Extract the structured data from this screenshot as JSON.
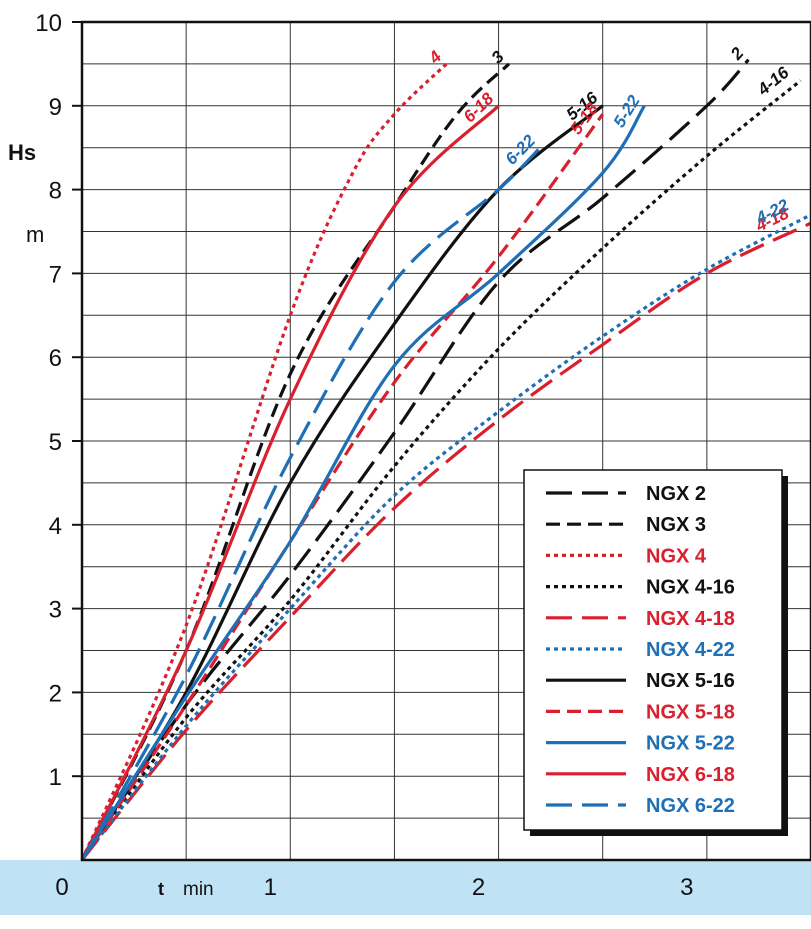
{
  "chart_data": {
    "type": "line",
    "x_axis": {
      "ticks": [
        "0",
        "1",
        "2",
        "3"
      ],
      "label_bold": "t",
      "label_unit": "min",
      "range": [
        0,
        3.5
      ]
    },
    "y_axis": {
      "ticks": [
        "1",
        "2",
        "3",
        "4",
        "5",
        "6",
        "7",
        "8",
        "9",
        "10"
      ],
      "label_bold": "Hs",
      "label_unit": "m",
      "range": [
        0,
        10
      ]
    },
    "grid": true,
    "legend_position": "bottom-right",
    "series": [
      {
        "name": "NGX 2",
        "end_label": "2",
        "color": "#111111",
        "dash": "long-dash",
        "points": [
          [
            0,
            0
          ],
          [
            0.5,
            1.85
          ],
          [
            1,
            3.4
          ],
          [
            1.5,
            5.1
          ],
          [
            2,
            6.9
          ],
          [
            2.5,
            7.9
          ],
          [
            3,
            9.0
          ],
          [
            3.2,
            9.55
          ]
        ]
      },
      {
        "name": "NGX 3",
        "end_label": "3",
        "color": "#111111",
        "dash": "dash",
        "points": [
          [
            0,
            0
          ],
          [
            0.5,
            2.5
          ],
          [
            1,
            5.8
          ],
          [
            1.5,
            7.8
          ],
          [
            1.8,
            8.9
          ],
          [
            2.05,
            9.5
          ]
        ]
      },
      {
        "name": "NGX 4",
        "end_label": "4",
        "color": "#d8202f",
        "dash": "dot",
        "points": [
          [
            0,
            0
          ],
          [
            0.5,
            2.8
          ],
          [
            1,
            6.5
          ],
          [
            1.3,
            8.2
          ],
          [
            1.5,
            8.9
          ],
          [
            1.75,
            9.5
          ]
        ]
      },
      {
        "name": "NGX 4-16",
        "end_label": "4-16",
        "color": "#111111",
        "dash": "dot",
        "points": [
          [
            0,
            0
          ],
          [
            0.5,
            1.7
          ],
          [
            1,
            3.1
          ],
          [
            1.5,
            4.7
          ],
          [
            2,
            6.1
          ],
          [
            2.5,
            7.3
          ],
          [
            3,
            8.4
          ],
          [
            3.45,
            9.3
          ]
        ]
      },
      {
        "name": "NGX 4-18",
        "end_label": "4-18",
        "color": "#d8202f",
        "dash": "long-dash",
        "points": [
          [
            0,
            0
          ],
          [
            0.5,
            1.55
          ],
          [
            1,
            2.9
          ],
          [
            1.5,
            4.2
          ],
          [
            2,
            5.25
          ],
          [
            2.5,
            6.15
          ],
          [
            3,
            7.0
          ],
          [
            3.5,
            7.6
          ]
        ]
      },
      {
        "name": "NGX 4-22",
        "end_label": "4-22",
        "color": "#1e6fb5",
        "dash": "dot",
        "points": [
          [
            0,
            0
          ],
          [
            0.5,
            1.6
          ],
          [
            1,
            3.0
          ],
          [
            1.5,
            4.35
          ],
          [
            2,
            5.35
          ],
          [
            2.5,
            6.25
          ],
          [
            3,
            7.05
          ],
          [
            3.5,
            7.7
          ]
        ]
      },
      {
        "name": "NGX 5-16",
        "end_label": "5-16",
        "color": "#111111",
        "dash": "solid",
        "points": [
          [
            0,
            0
          ],
          [
            0.5,
            2.0
          ],
          [
            1,
            4.5
          ],
          [
            1.5,
            6.4
          ],
          [
            2,
            8.0
          ],
          [
            2.5,
            9.0
          ]
        ]
      },
      {
        "name": "NGX 5-18",
        "end_label": "5-18",
        "color": "#d8202f",
        "dash": "dash",
        "points": [
          [
            0,
            0
          ],
          [
            0.5,
            1.85
          ],
          [
            1,
            3.8
          ],
          [
            1.5,
            5.7
          ],
          [
            2,
            7.2
          ],
          [
            2.5,
            8.9
          ]
        ]
      },
      {
        "name": "NGX 5-22",
        "end_label": "5-22",
        "color": "#1e6fb5",
        "dash": "solid",
        "points": [
          [
            0,
            0
          ],
          [
            0.5,
            1.95
          ],
          [
            1,
            3.8
          ],
          [
            1.5,
            5.9
          ],
          [
            2,
            7.0
          ],
          [
            2.5,
            8.2
          ],
          [
            2.7,
            9.0
          ]
        ]
      },
      {
        "name": "NGX 6-18",
        "end_label": "6-18",
        "color": "#d8202f",
        "dash": "solid",
        "points": [
          [
            0,
            0
          ],
          [
            0.5,
            2.5
          ],
          [
            1,
            5.5
          ],
          [
            1.5,
            7.8
          ],
          [
            2,
            9.0
          ]
        ]
      },
      {
        "name": "NGX 6-22",
        "end_label": "6-22",
        "color": "#1e6fb5",
        "dash": "long-dash",
        "points": [
          [
            0,
            0
          ],
          [
            0.5,
            2.2
          ],
          [
            1,
            4.8
          ],
          [
            1.5,
            6.9
          ],
          [
            2,
            8.0
          ],
          [
            2.2,
            8.5
          ]
        ]
      }
    ]
  }
}
